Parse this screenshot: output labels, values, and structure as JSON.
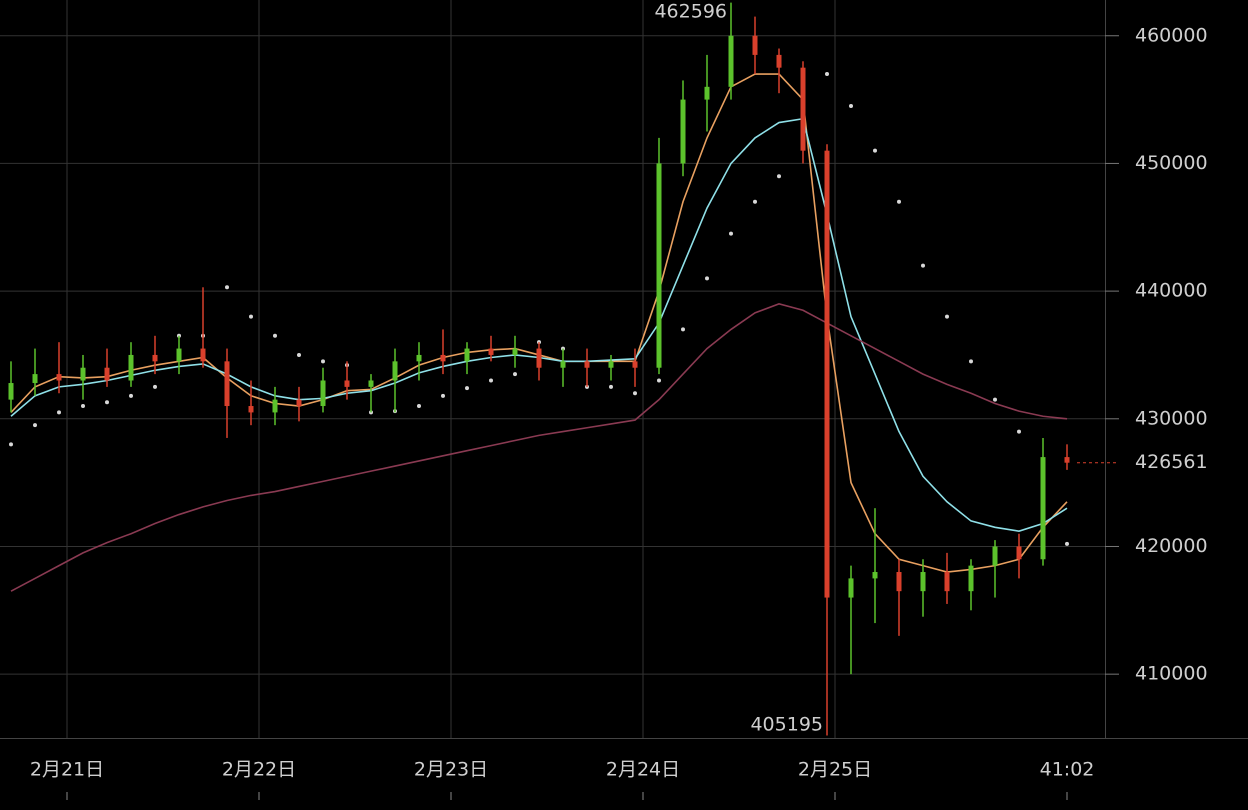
{
  "chart_data": {
    "type": "candlestick",
    "x": [
      -7,
      -4,
      -1,
      2,
      5,
      8,
      11,
      14,
      17,
      20,
      23,
      26,
      29,
      32,
      35,
      38,
      41,
      44,
      47,
      50,
      53,
      56,
      59,
      62,
      65,
      68,
      71,
      74,
      77,
      80,
      83,
      86,
      89,
      92,
      95,
      98,
      101,
      104,
      107,
      110,
      113,
      116,
      119,
      122,
      125
    ],
    "open": [
      431500,
      432800,
      433500,
      433000,
      434000,
      433000,
      435000,
      434500,
      435500,
      434500,
      431000,
      430500,
      431500,
      431000,
      433000,
      432500,
      433000,
      434500,
      435000,
      434500,
      435500,
      435000,
      435500,
      434000,
      434500,
      434000,
      434500,
      434000,
      450000,
      455000,
      456000,
      460000,
      458500,
      457500,
      451000,
      416000,
      417500,
      418000,
      416500,
      418000,
      416500,
      418500,
      420000,
      419000,
      427000
    ],
    "high": [
      434500,
      435500,
      436000,
      435000,
      435500,
      436000,
      436500,
      436500,
      440300,
      435500,
      433000,
      432500,
      432500,
      434000,
      434500,
      433500,
      435500,
      436000,
      437000,
      436000,
      436500,
      436500,
      436000,
      435500,
      435500,
      435000,
      435500,
      452000,
      456500,
      458500,
      462596,
      461500,
      459000,
      458000,
      451500,
      418500,
      423000,
      419000,
      419000,
      419500,
      419000,
      420500,
      421000,
      428500,
      428000
    ],
    "low": [
      430500,
      431800,
      432000,
      431500,
      432500,
      432500,
      433500,
      433500,
      434000,
      428500,
      429500,
      429500,
      429800,
      430500,
      431500,
      430500,
      430500,
      433000,
      433500,
      433500,
      434500,
      434000,
      433000,
      432500,
      432500,
      433000,
      432500,
      433500,
      449000,
      452500,
      455000,
      457000,
      455500,
      450000,
      405195,
      410000,
      414000,
      413000,
      414500,
      415500,
      415000,
      416000,
      417500,
      418500,
      426000
    ],
    "close": [
      432800,
      433500,
      433000,
      434000,
      433000,
      435000,
      434500,
      435500,
      434500,
      431000,
      430500,
      431500,
      431000,
      433000,
      432500,
      433000,
      434500,
      435000,
      434500,
      435500,
      435000,
      435500,
      434000,
      434500,
      434000,
      434500,
      434000,
      450000,
      455000,
      456000,
      460000,
      458500,
      457500,
      451000,
      416000,
      417500,
      418000,
      416500,
      418000,
      416500,
      418500,
      420000,
      419000,
      427000,
      426561
    ],
    "up_color": "#5cc22c",
    "down_color": "#d9402c",
    "lines": [
      {
        "color": "#e8a060",
        "values": [
          430500,
          432500,
          433300,
          433200,
          433300,
          433800,
          434200,
          434500,
          434800,
          433200,
          431800,
          431200,
          431000,
          431500,
          432200,
          432300,
          433200,
          434200,
          434800,
          435200,
          435400,
          435500,
          435000,
          434500,
          434500,
          434500,
          434500,
          440000,
          447000,
          452000,
          456000,
          457000,
          457000,
          455000,
          438000,
          425000,
          421000,
          419000,
          418500,
          418000,
          418200,
          418500,
          419000,
          421500,
          423500
        ]
      },
      {
        "color": "#8fe0e8",
        "values": [
          430200,
          431800,
          432500,
          432700,
          433000,
          433400,
          433800,
          434100,
          434300,
          433500,
          432500,
          431800,
          431500,
          431600,
          432000,
          432200,
          432800,
          433600,
          434100,
          434500,
          434800,
          435000,
          434800,
          434500,
          434500,
          434600,
          434700,
          437500,
          442000,
          446500,
          450000,
          452000,
          453200,
          453500,
          446000,
          438000,
          433500,
          429000,
          425500,
          423500,
          422000,
          421500,
          421200,
          421800,
          423000
        ]
      },
      {
        "color": "#8a3a52",
        "values": [
          416500,
          417500,
          418500,
          419500,
          420300,
          421000,
          421800,
          422500,
          423100,
          423600,
          424000,
          424300,
          424700,
          425100,
          425500,
          425900,
          426300,
          426700,
          427100,
          427500,
          427900,
          428300,
          428700,
          429000,
          429300,
          429600,
          429900,
          431500,
          433500,
          435500,
          437000,
          438300,
          439000,
          438500,
          437500,
          436500,
          435500,
          434500,
          433500,
          432700,
          432000,
          431200,
          430600,
          430200,
          430000
        ]
      }
    ],
    "sar": {
      "color": "#d8d8d8",
      "values": [
        428000,
        429500,
        430500,
        431000,
        431300,
        431800,
        432500,
        436500,
        436500,
        440300,
        438000,
        436500,
        435000,
        434500,
        434200,
        430500,
        430600,
        431000,
        431800,
        432400,
        433000,
        433500,
        436000,
        435500,
        432500,
        432500,
        432000,
        433000,
        437000,
        441000,
        444500,
        447000,
        449000,
        457000,
        457000,
        454500,
        451000,
        447000,
        442000,
        438000,
        434500,
        431500,
        429000,
        419800,
        420200
      ]
    },
    "xlim": [
      -8.375,
      129.75
    ],
    "xticks": [
      {
        "value": 0,
        "label": "2月21日"
      },
      {
        "value": 24,
        "label": "2月22日"
      },
      {
        "value": 48,
        "label": "2月23日"
      },
      {
        "value": 72,
        "label": "2月24日"
      },
      {
        "value": 96,
        "label": "2月25日"
      }
    ],
    "ylim": [
      405000,
      462800
    ],
    "yticks": [
      410000,
      420000,
      430000,
      440000,
      450000,
      460000
    ],
    "grid": true,
    "countdown": "41:02"
  }
}
